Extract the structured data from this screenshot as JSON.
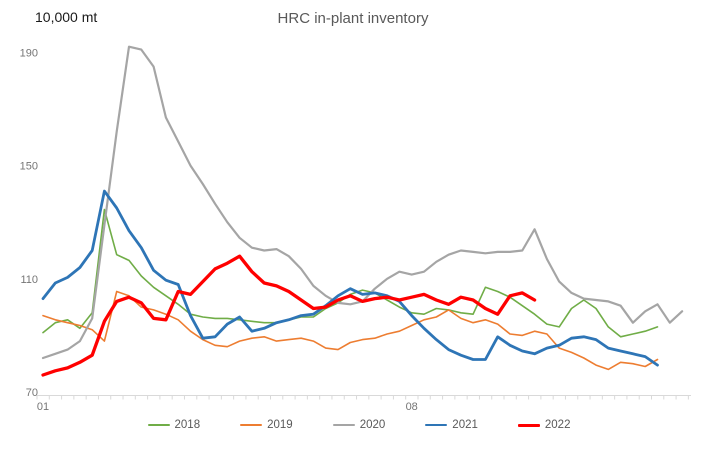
{
  "header": {
    "units_label": "10,000 mt",
    "title": "HRC in-plant inventory"
  },
  "chart_data": {
    "type": "line",
    "title": "HRC in-plant inventory",
    "ylabel": "10,000 mt",
    "x_unit": "weekly data, Jan-Dec",
    "x_axis_labels": [
      {
        "label": "01",
        "week": 1
      },
      {
        "label": "08",
        "week": 31
      }
    ],
    "y_ticks": [
      70,
      110,
      150,
      190
    ],
    "ylim": [
      70,
      200
    ],
    "xlim_weeks": [
      1,
      53
    ],
    "grid": false,
    "legend_position": "bottom",
    "series": [
      {
        "name": "2018",
        "color": "#70AD47",
        "width": 1.6,
        "values": [
          91,
          94.5,
          95.5,
          92.5,
          98,
          134.5,
          118.5,
          116.5,
          111,
          107,
          104,
          101,
          97.5,
          96.5,
          96,
          96,
          95.5,
          95,
          94.5,
          94.5,
          95.5,
          96.5,
          96.5,
          99.5,
          101.5,
          104.5,
          106,
          105,
          102.5,
          100,
          98,
          97.5,
          99.5,
          99,
          98,
          97.5,
          107,
          105.5,
          103.5,
          100.5,
          97.5,
          94,
          93,
          99.5,
          102.5,
          99.5,
          93,
          89.5,
          90.5,
          91.5,
          93
        ]
      },
      {
        "name": "2019",
        "color": "#ED7D31",
        "width": 1.6,
        "values": [
          97,
          95.5,
          94.5,
          93.5,
          92,
          88,
          105.5,
          104,
          100,
          99,
          97.5,
          95.5,
          91.5,
          88.5,
          86.5,
          86,
          88,
          89,
          89.5,
          88,
          88.5,
          89,
          88,
          85.5,
          85,
          87.5,
          88.5,
          89,
          90.5,
          91.5,
          93.5,
          95.5,
          96.5,
          99,
          96,
          94.5,
          95.5,
          94,
          90.5,
          90,
          91.5,
          90.5,
          85.5,
          84,
          82,
          79.5,
          78,
          80.5,
          80,
          79,
          81.5
        ]
      },
      {
        "name": "2020",
        "color": "#A5A5A5",
        "width": 2.2,
        "values": [
          82,
          83.5,
          85,
          88,
          96,
          129,
          162,
          192,
          191,
          185,
          167,
          158.5,
          150,
          143.5,
          136.5,
          130,
          124.5,
          121,
          120,
          120.5,
          118,
          113.5,
          107.5,
          104,
          101.5,
          101,
          102,
          106.5,
          110,
          112.5,
          111.5,
          112.5,
          116,
          118.5,
          120,
          119.5,
          119,
          119.5,
          119.5,
          120,
          127.5,
          117,
          109,
          105,
          103,
          102.5,
          102,
          100.5,
          94.5,
          98.5,
          101,
          94.5,
          98.5
        ]
      },
      {
        "name": "2021",
        "color": "#2E75B6",
        "width": 2.8,
        "values": [
          103,
          108.5,
          110.5,
          114,
          120,
          141,
          135,
          127,
          121,
          113,
          109.5,
          108,
          97,
          89,
          89.5,
          94,
          96.5,
          91.5,
          92.5,
          94.5,
          95.5,
          97,
          97.5,
          100.5,
          104,
          106.5,
          104.5,
          105,
          104,
          102,
          97,
          92.5,
          88.5,
          85,
          83,
          81.5,
          81.5,
          89.5,
          86.5,
          84.5,
          83.5,
          85.5,
          86.5,
          89,
          89.5,
          88.5,
          85.5,
          84.5,
          83.5,
          82.5,
          79.5
        ]
      },
      {
        "name": "2022",
        "color": "#FF0000",
        "width": 3.3,
        "values": [
          76,
          77.5,
          78.5,
          80.5,
          83,
          95,
          102,
          103.5,
          101.5,
          96,
          95.5,
          105.5,
          104.5,
          109,
          113.5,
          115.5,
          118,
          112.5,
          108.5,
          107.5,
          105.5,
          102.5,
          99.5,
          100,
          102.5,
          104,
          102,
          103,
          103.5,
          102.5,
          103.5,
          104.5,
          102.5,
          101,
          103.5,
          102.5,
          99.5,
          97.5,
          104,
          105,
          102.5
        ]
      }
    ]
  }
}
